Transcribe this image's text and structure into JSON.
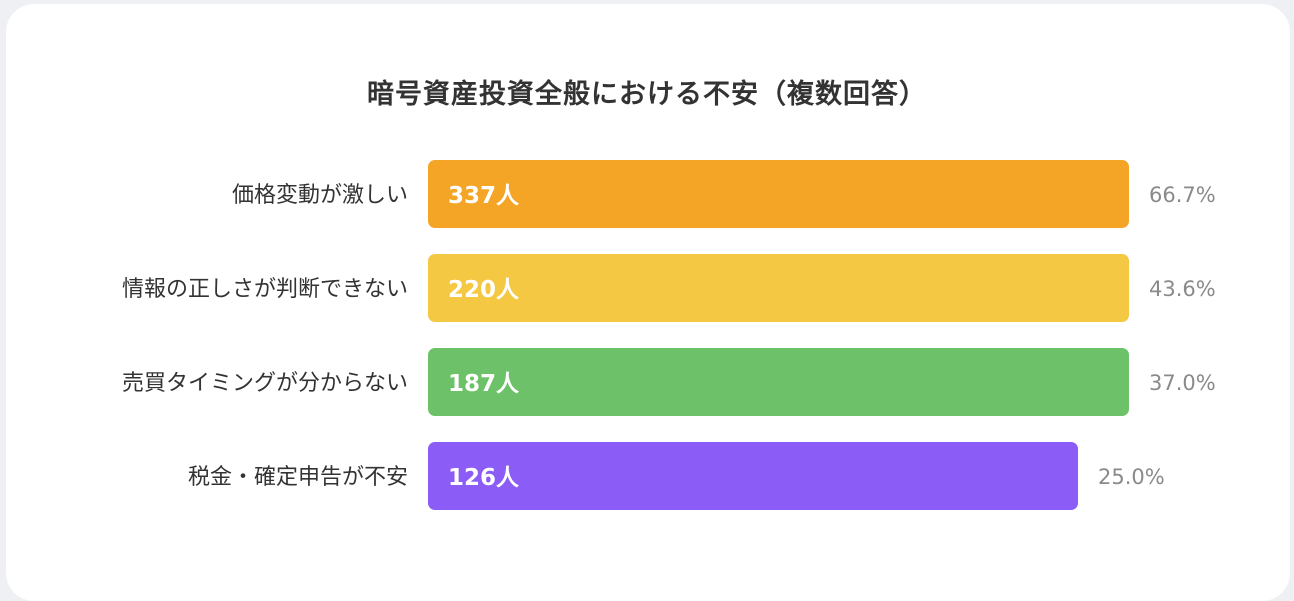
{
  "chart_data": {
    "type": "bar",
    "orientation": "horizontal",
    "title": "暗号資産投資全般における不安（複数回答）",
    "categories": [
      "価格変動が激しい",
      "情報の正しさが判断できない",
      "売買タイミングが分からない",
      "税金・確定申告が不安"
    ],
    "values": [
      337,
      220,
      187,
      126
    ],
    "value_labels": [
      "337人",
      "220人",
      "187人",
      "126人"
    ],
    "percent_labels": [
      "66.7%",
      "43.6%",
      "37.0%",
      "25.0%"
    ],
    "colors": [
      "#f4a525",
      "#f4c842",
      "#6cc169",
      "#8b5cf6"
    ]
  }
}
